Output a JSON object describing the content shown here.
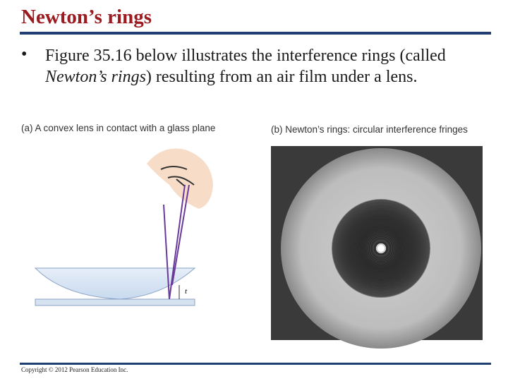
{
  "header": {
    "title": "Newton’s rings"
  },
  "bullet": {
    "parts": [
      "Figure 35.16 below illustrates the interference rings (called ",
      "Newton’s rings",
      ") resulting from an air film under a lens."
    ]
  },
  "figure": {
    "panel_a": {
      "caption": "(a) A convex lens in contact with a glass plane",
      "thickness_label": "t"
    },
    "panel_b": {
      "caption": "(b) Newton’s rings: circular interference fringes"
    }
  },
  "footer": {
    "copyright": "Copyright © 2012 Pearson Education Inc."
  }
}
